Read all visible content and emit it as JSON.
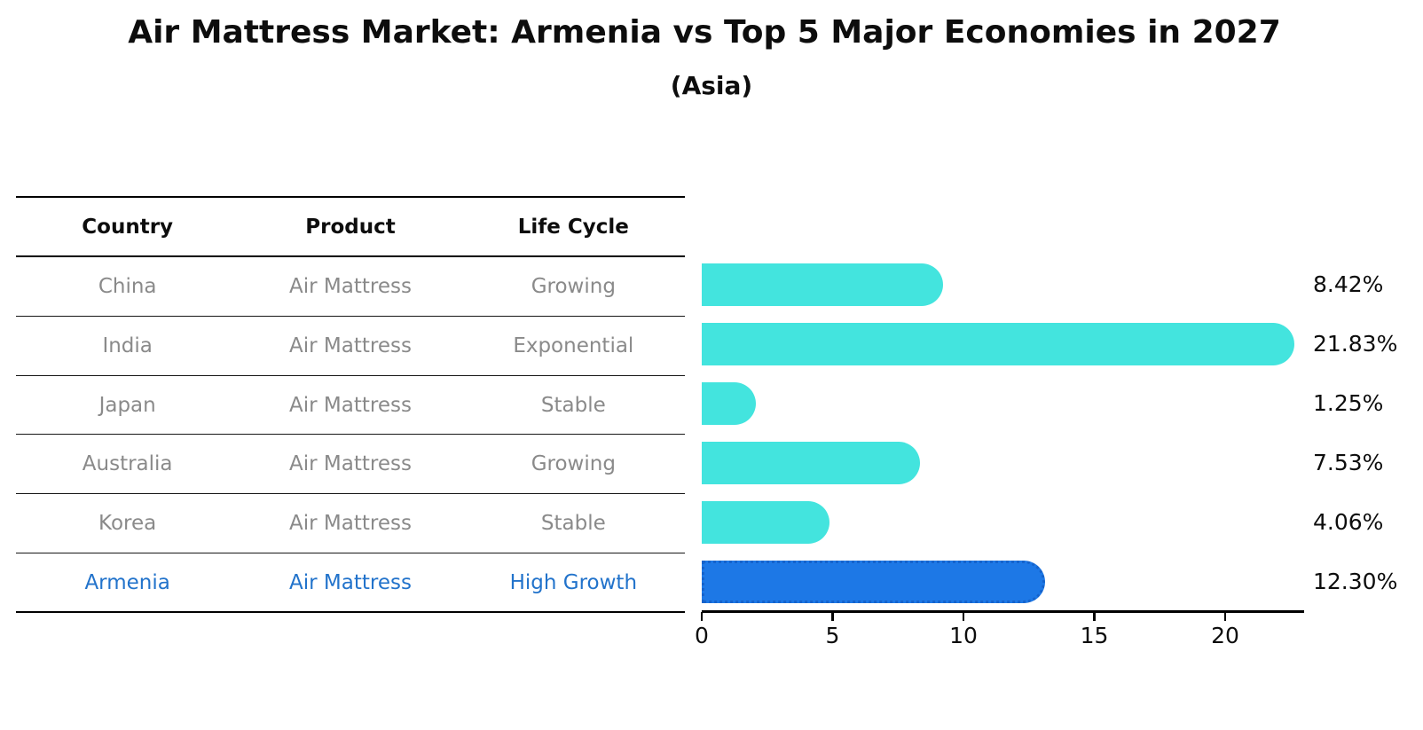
{
  "title": "Air Mattress Market: Armenia vs Top 5 Major Economies in 2027",
  "subtitle": "(Asia)",
  "table": {
    "headers": [
      "Country",
      "Product",
      "Life Cycle"
    ],
    "rows": [
      {
        "country": "China",
        "product": "Air Mattress",
        "life_cycle": "Growing",
        "highlight": false
      },
      {
        "country": "India",
        "product": "Air Mattress",
        "life_cycle": "Exponential",
        "highlight": false
      },
      {
        "country": "Japan",
        "product": "Air Mattress",
        "life_cycle": "Stable",
        "highlight": false
      },
      {
        "country": "Australia",
        "product": "Air Mattress",
        "life_cycle": "Growing",
        "highlight": false
      },
      {
        "country": "Korea",
        "product": "Air Mattress",
        "life_cycle": "Stable",
        "highlight": false
      },
      {
        "country": "Armenia",
        "product": "Air Mattress",
        "life_cycle": "High Growth",
        "highlight": true
      }
    ]
  },
  "chart_data": {
    "type": "bar",
    "orientation": "horizontal",
    "title": "Air Mattress Market: Armenia vs Top 5 Major Economies in 2027",
    "subtitle": "(Asia)",
    "categories": [
      "China",
      "India",
      "Japan",
      "Australia",
      "Korea",
      "Armenia"
    ],
    "values": [
      8.42,
      21.83,
      1.25,
      7.53,
      4.06,
      12.3
    ],
    "labels": [
      "8.42%",
      "21.83%",
      "1.25%",
      "7.53%",
      "4.06%",
      "12.30%"
    ],
    "x_ticks": [
      0,
      5,
      10,
      15,
      20
    ],
    "xlim": [
      0,
      23
    ],
    "grid": false,
    "legend": false,
    "bar_color": "#43e4de",
    "highlight_index": 5,
    "highlight_color": "#1d78e6",
    "highlight_border_color": "#1563cc"
  },
  "colors": {
    "row_text": "#8a8a8a",
    "highlight_text": "#2273cb",
    "heading_text": "#0d0d0d"
  }
}
